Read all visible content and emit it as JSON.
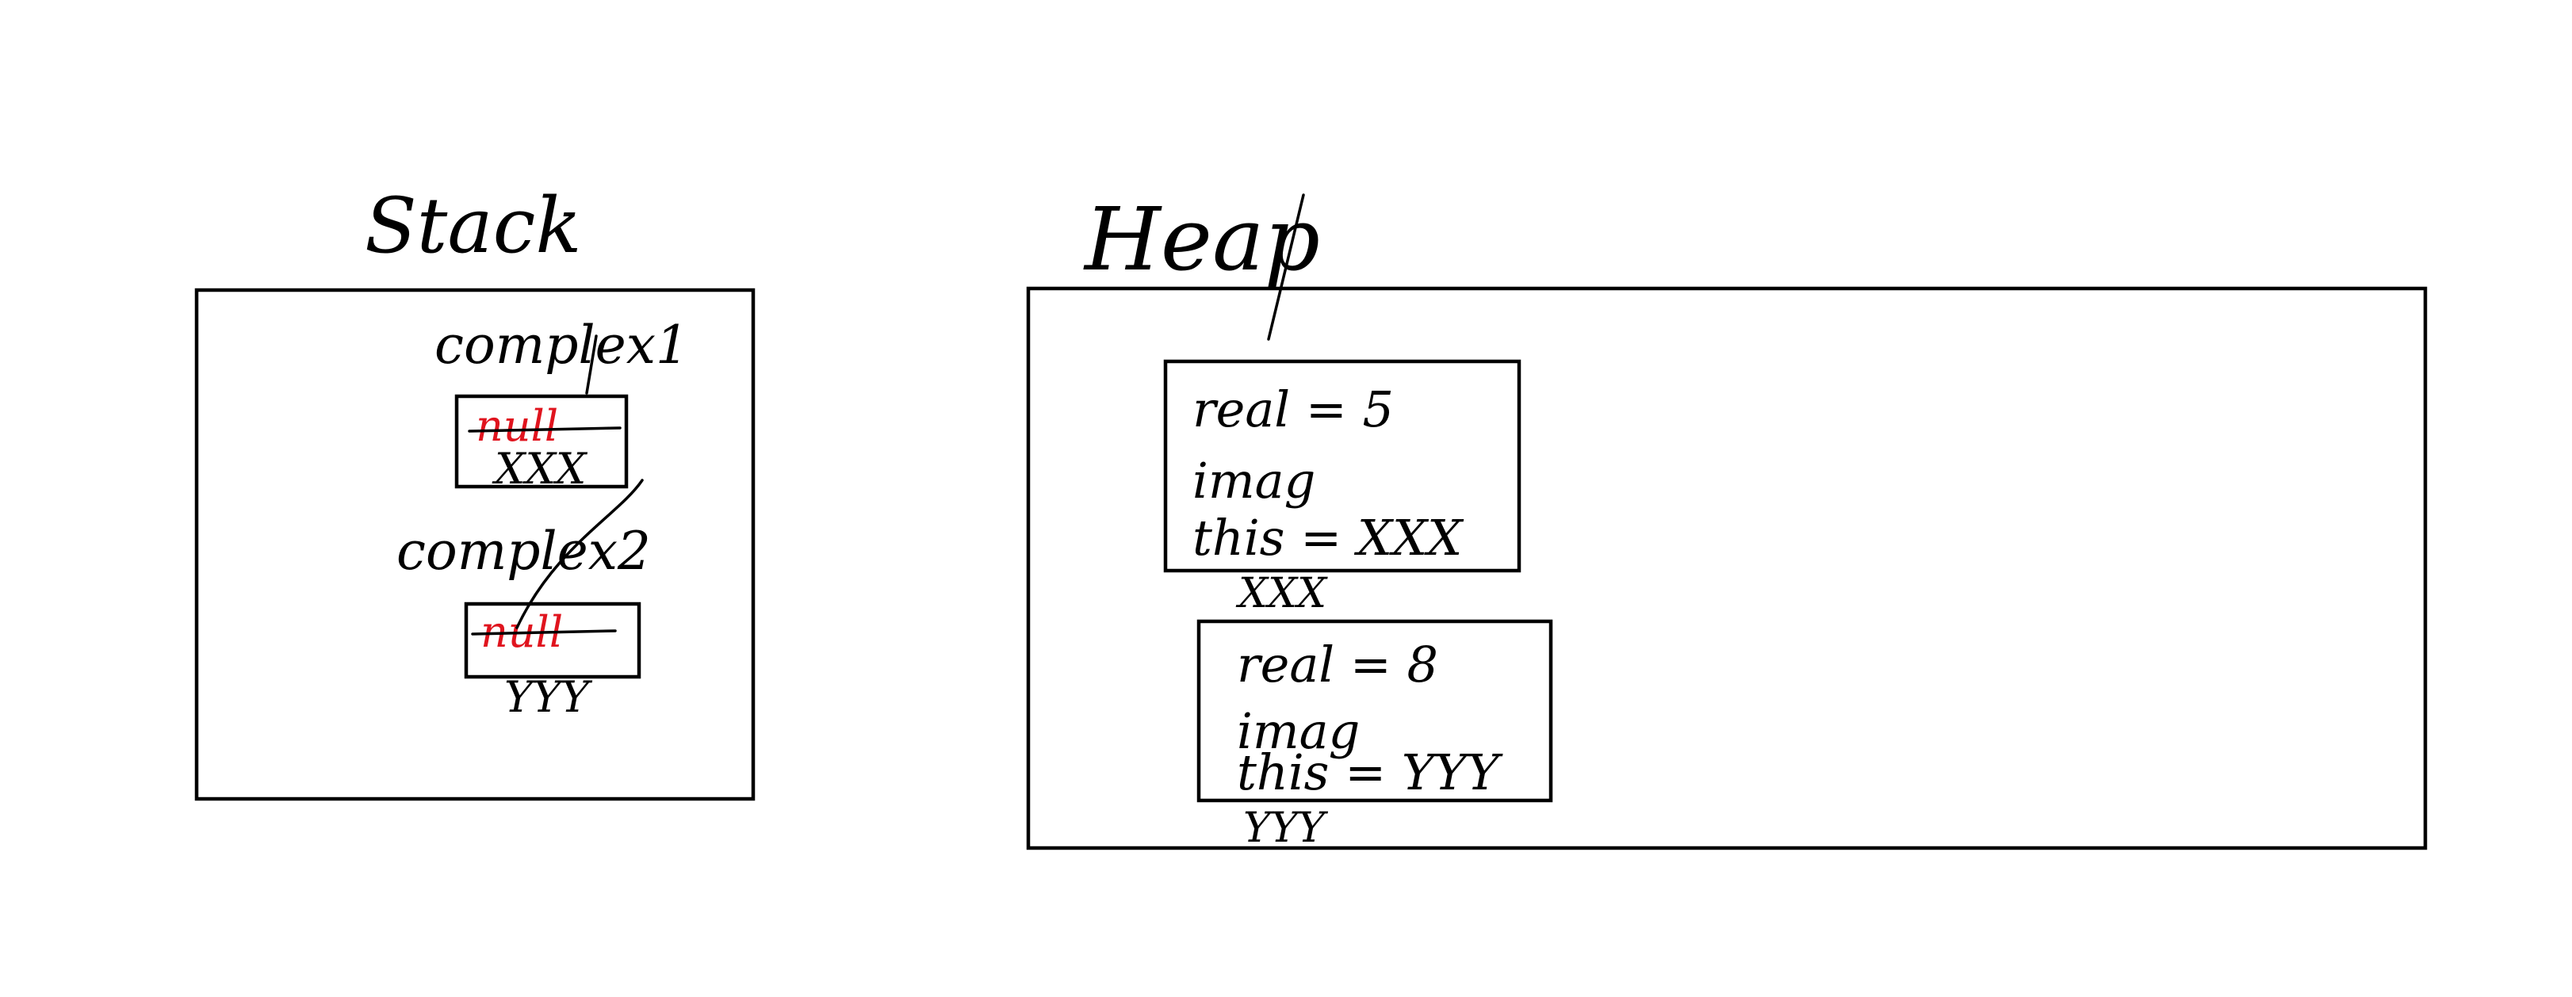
{
  "colors": {
    "ink": "#000000",
    "struck_value": "#e0141e",
    "background": "#ffffff"
  },
  "stack": {
    "title": "Stack",
    "variables": [
      {
        "name": "complex1",
        "old_value": "null",
        "value": "XXX"
      },
      {
        "name": "complex2",
        "old_value": "null",
        "value": "YYY"
      }
    ]
  },
  "heap": {
    "title": "Heap",
    "objects": [
      {
        "real_field": "real = 5",
        "imag_field": "imag",
        "this_field": "this = XXX",
        "address": "XXX"
      },
      {
        "real_field": "real = 8",
        "imag_field": "imag",
        "this_field": "this = YYY",
        "address": "YYY"
      }
    ]
  }
}
